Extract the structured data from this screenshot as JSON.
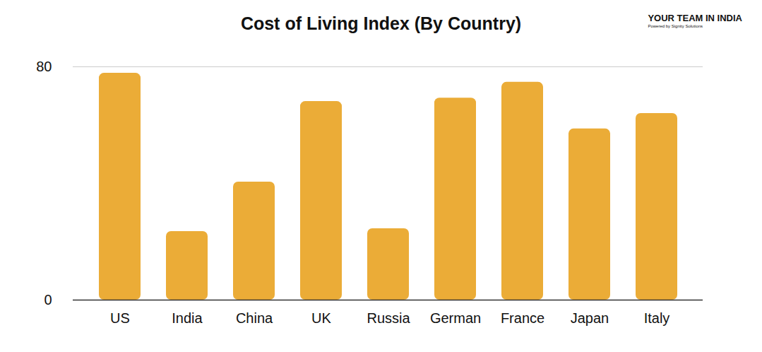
{
  "chart_data": {
    "type": "bar",
    "title": "Cost of Living Index (By Country)",
    "categories": [
      "US",
      "India",
      "China",
      "UK",
      "Russia",
      "German",
      "France",
      "Japan",
      "Italy"
    ],
    "values": [
      77.8,
      23.5,
      40.5,
      68.1,
      24.5,
      69.3,
      74.7,
      58.7,
      64.0
    ],
    "color": "#ebac37",
    "ylim": [
      0,
      80
    ],
    "yticks": [
      0,
      80
    ],
    "grid": true,
    "annotations": [
      "YOUR TEAM IN INDIA",
      "Powered by Signity Solutions"
    ]
  }
}
